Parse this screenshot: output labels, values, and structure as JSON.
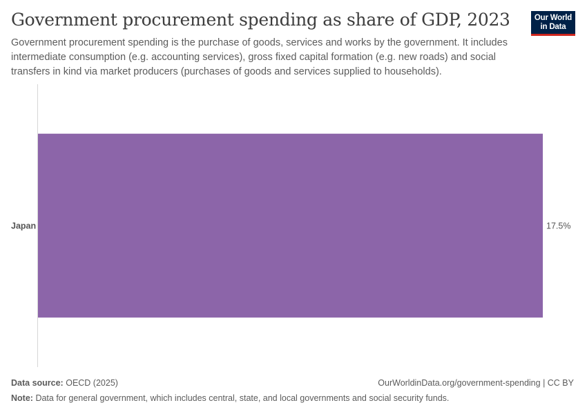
{
  "header": {
    "title": "Government procurement spending as share of GDP, 2023",
    "subtitle": "Government procurement spending is the purchase of goods, services and works by the government. It includes intermediate consumption (e.g. accounting services), gross fixed capital formation (e.g. new roads) and social transfers in kind via market producers (purchases of goods and services supplied to households).",
    "logo_line1": "Our World",
    "logo_line2": "in Data"
  },
  "chart_data": {
    "type": "bar",
    "orientation": "horizontal",
    "categories": [
      "Japan"
    ],
    "values": [
      17.5
    ],
    "value_labels": [
      "17.5%"
    ],
    "unit": "%",
    "bar_color": "#8c65a9",
    "grid": false
  },
  "footer": {
    "source_label": "Data source:",
    "source_value": "OECD (2025)",
    "url": "OurWorldinData.org/government-spending | CC BY",
    "note_label": "Note:",
    "note_value": "Data for general government, which includes central, state, and local governments and social security funds."
  },
  "colors": {
    "logo_bg": "#002147",
    "logo_accent": "#ce261e",
    "bar": "#8c65a9"
  }
}
